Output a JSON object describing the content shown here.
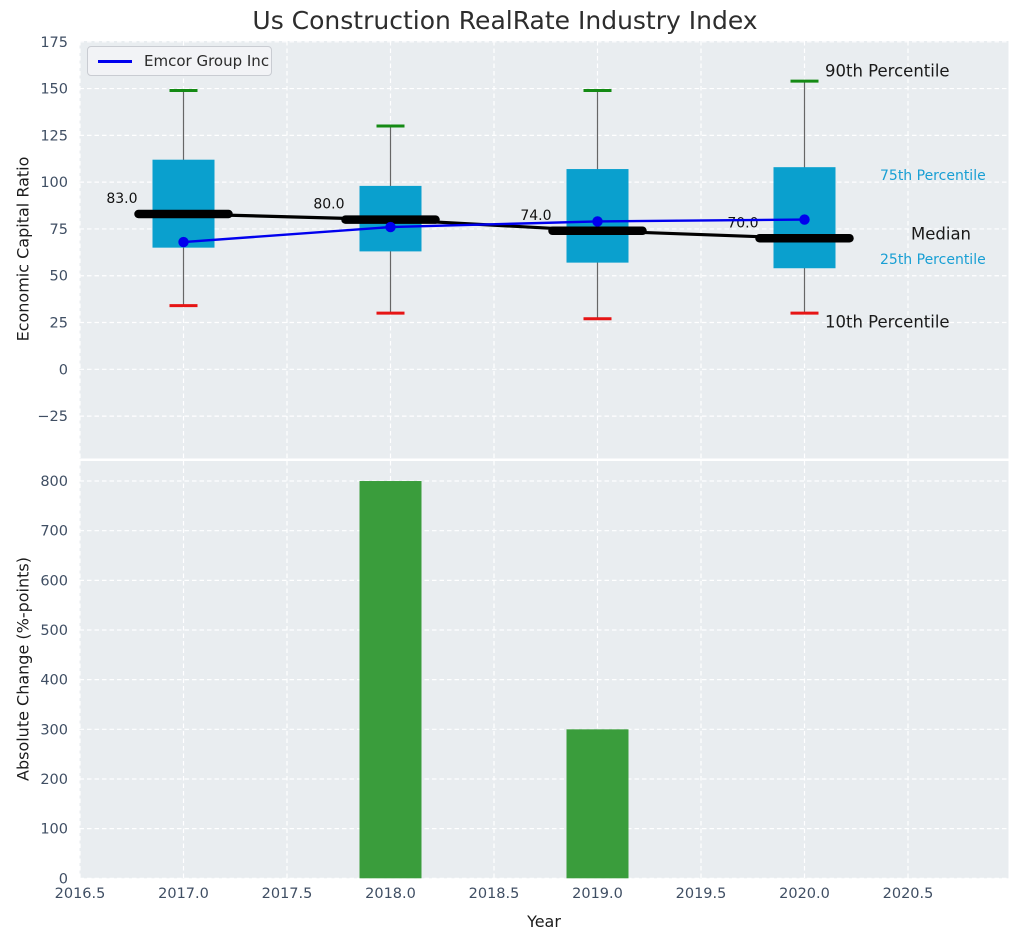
{
  "title": "Us Construction RealRate Industry Index",
  "legend": {
    "label": "Emcor Group Inc"
  },
  "labels": {
    "percentile_90": "90th Percentile",
    "percentile_75": "75th Percentile",
    "median": "Median",
    "percentile_25": "25th Percentile",
    "percentile_10": "10th Percentile",
    "ylabel_top": "Economic Capital Ratio",
    "ylabel_bottom": "Absolute Change (%-points)",
    "xlabel": "Year"
  },
  "colors": {
    "axes_bg": "#e9edf0",
    "grid": "#ffffff",
    "box_fill": "#0aa0ce",
    "median_line": "#000000",
    "emcor_line": "#0000ee",
    "cap_90": "#148a14",
    "cap_10": "#e61414",
    "whisker": "#666666",
    "bar_fill": "#3a9d3c",
    "tick_label": "#3f4e63",
    "label_dark": "#1a1a1a",
    "percentile_cyan": "#189fd4",
    "annotation": "#111111"
  },
  "chart_data": [
    {
      "type": "box",
      "title": "Us Construction RealRate Industry Index",
      "ylabel": "Economic Capital Ratio",
      "x": [
        2017,
        2018,
        2019,
        2020
      ],
      "xlim": [
        2016.5,
        2020.985
      ],
      "ylim": [
        -47,
        175.5
      ],
      "yticks": [
        175,
        150,
        125,
        100,
        75,
        50,
        25,
        0,
        -25
      ],
      "grid": true,
      "legend_position": "upper left",
      "boxes": [
        {
          "year": 2017,
          "p90": 149,
          "p75": 112,
          "median": 83,
          "p25": 65,
          "p10": 34
        },
        {
          "year": 2018,
          "p90": 130,
          "p75": 98,
          "median": 80,
          "p25": 63,
          "p10": 30
        },
        {
          "year": 2019,
          "p90": 149,
          "p75": 107,
          "median": 74,
          "p25": 57,
          "p10": 27
        },
        {
          "year": 2020,
          "p90": 154,
          "p75": 108,
          "median": 70,
          "p25": 54,
          "p10": 30
        }
      ],
      "median_labels": [
        "83.0",
        "80.0",
        "74.0",
        "70.0"
      ],
      "series": [
        {
          "name": "Emcor Group Inc",
          "x": [
            2017,
            2018,
            2019,
            2020
          ],
          "values": [
            68,
            76,
            79,
            80
          ]
        }
      ],
      "annotations": [
        "90th Percentile",
        "75th Percentile",
        "Median",
        "25th Percentile",
        "10th Percentile"
      ]
    },
    {
      "type": "bar",
      "ylabel": "Absolute Change (%-points)",
      "xlabel": "Year",
      "categories": [
        2018,
        2019
      ],
      "values": [
        800,
        300
      ],
      "yticks": [
        800,
        700,
        600,
        500,
        400,
        300,
        200,
        100,
        0
      ],
      "xtick_labels": [
        "2016.5",
        "2017.0",
        "2017.5",
        "2018.0",
        "2018.5",
        "2019.0",
        "2019.5",
        "2020.0",
        "2020.5"
      ],
      "xlim": [
        2016.5,
        2020.985
      ],
      "ylim": [
        0,
        840
      ],
      "grid": true
    }
  ]
}
